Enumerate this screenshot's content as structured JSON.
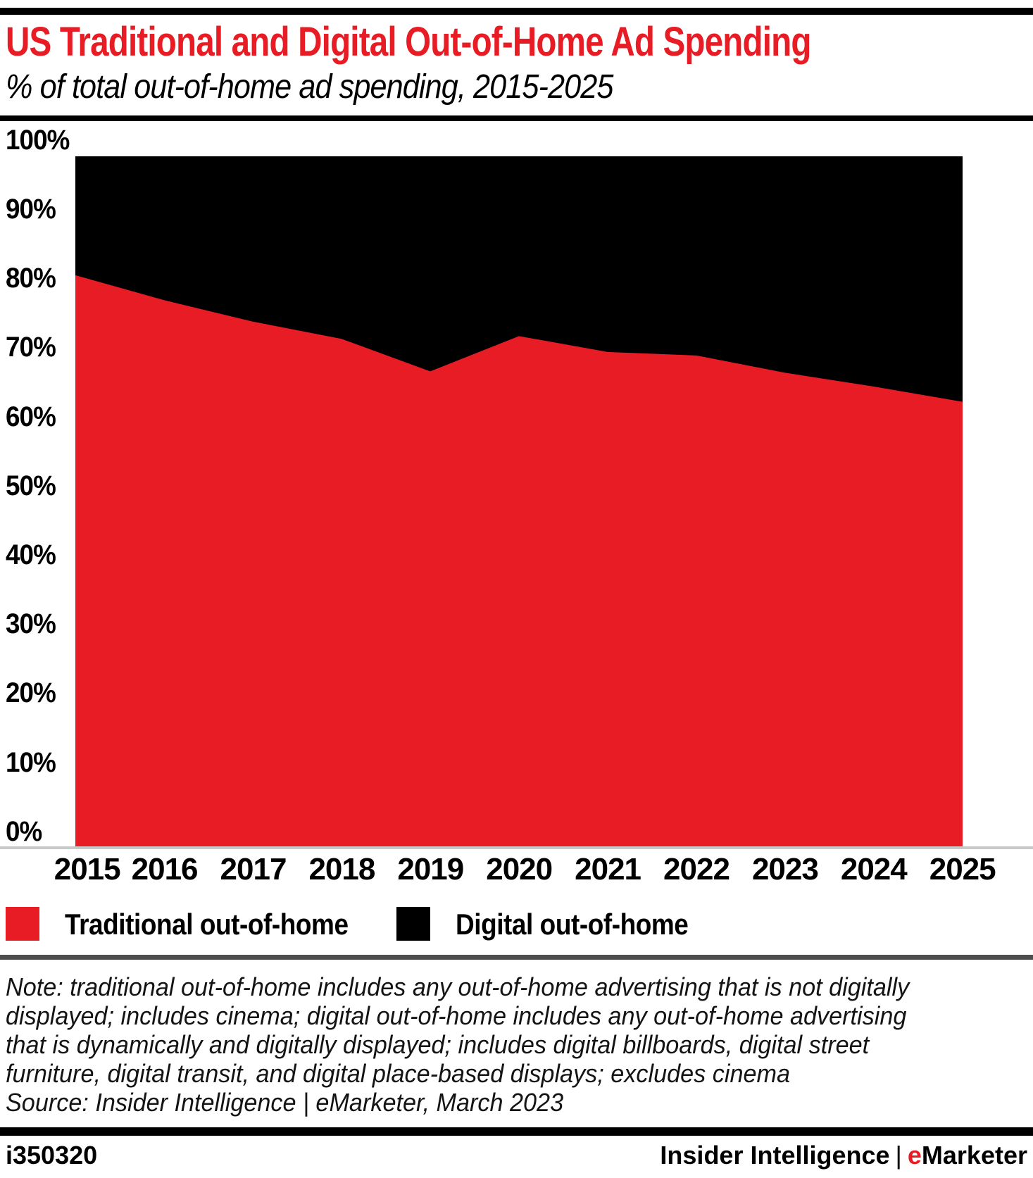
{
  "header": {
    "title": "US Traditional and Digital Out-of-Home Ad Spending",
    "subtitle": "% of total out-of-home ad spending, 2015-2025"
  },
  "colors": {
    "red": "#e81c24",
    "black": "#000000",
    "axis_line": "#c9c9c9",
    "rule_gray": "#4d4d4d"
  },
  "chart_data": {
    "type": "area",
    "stacked": true,
    "unit": "% of total out-of-home ad spending",
    "categories": [
      2015,
      2016,
      2017,
      2018,
      2019,
      2020,
      2021,
      2022,
      2023,
      2024,
      2025
    ],
    "series": [
      {
        "name": "Traditional out-of-home",
        "color": "#e81c24",
        "values": [
          82.8,
          79.2,
          76.1,
          73.6,
          68.9,
          74.0,
          71.7,
          71.2,
          68.7,
          66.7,
          64.5
        ]
      },
      {
        "name": "Digital out-of-home",
        "color": "#000000",
        "values": [
          17.2,
          20.8,
          23.9,
          26.4,
          31.1,
          26.0,
          28.3,
          28.8,
          31.3,
          33.3,
          35.5
        ]
      }
    ],
    "ylim": [
      0,
      100
    ],
    "yticks": [
      "100%",
      "90%",
      "80%",
      "70%",
      "60%",
      "50%",
      "40%",
      "30%",
      "20%",
      "10%",
      "0%"
    ],
    "grid": false,
    "legend_position": "bottom"
  },
  "legend": [
    {
      "label": "Traditional out-of-home",
      "color": "#e81c24"
    },
    {
      "label": "Digital out-of-home",
      "color": "#000000"
    }
  ],
  "note_lines": [
    "Note: traditional out-of-home includes any out-of-home advertising that is not digitally",
    "displayed; includes cinema; digital out-of-home includes any out-of-home advertising",
    "that is dynamically and digitally displayed; includes digital billboards, digital street",
    "furniture, digital transit, and digital place-based displays; excludes cinema"
  ],
  "source": "Source: Insider Intelligence | eMarketer, March 2023",
  "footer": {
    "chart_id": "i350320",
    "brand": "Insider Intelligence",
    "separator": "|",
    "emarketer_e": "e",
    "emarketer_rest": "Marketer"
  }
}
